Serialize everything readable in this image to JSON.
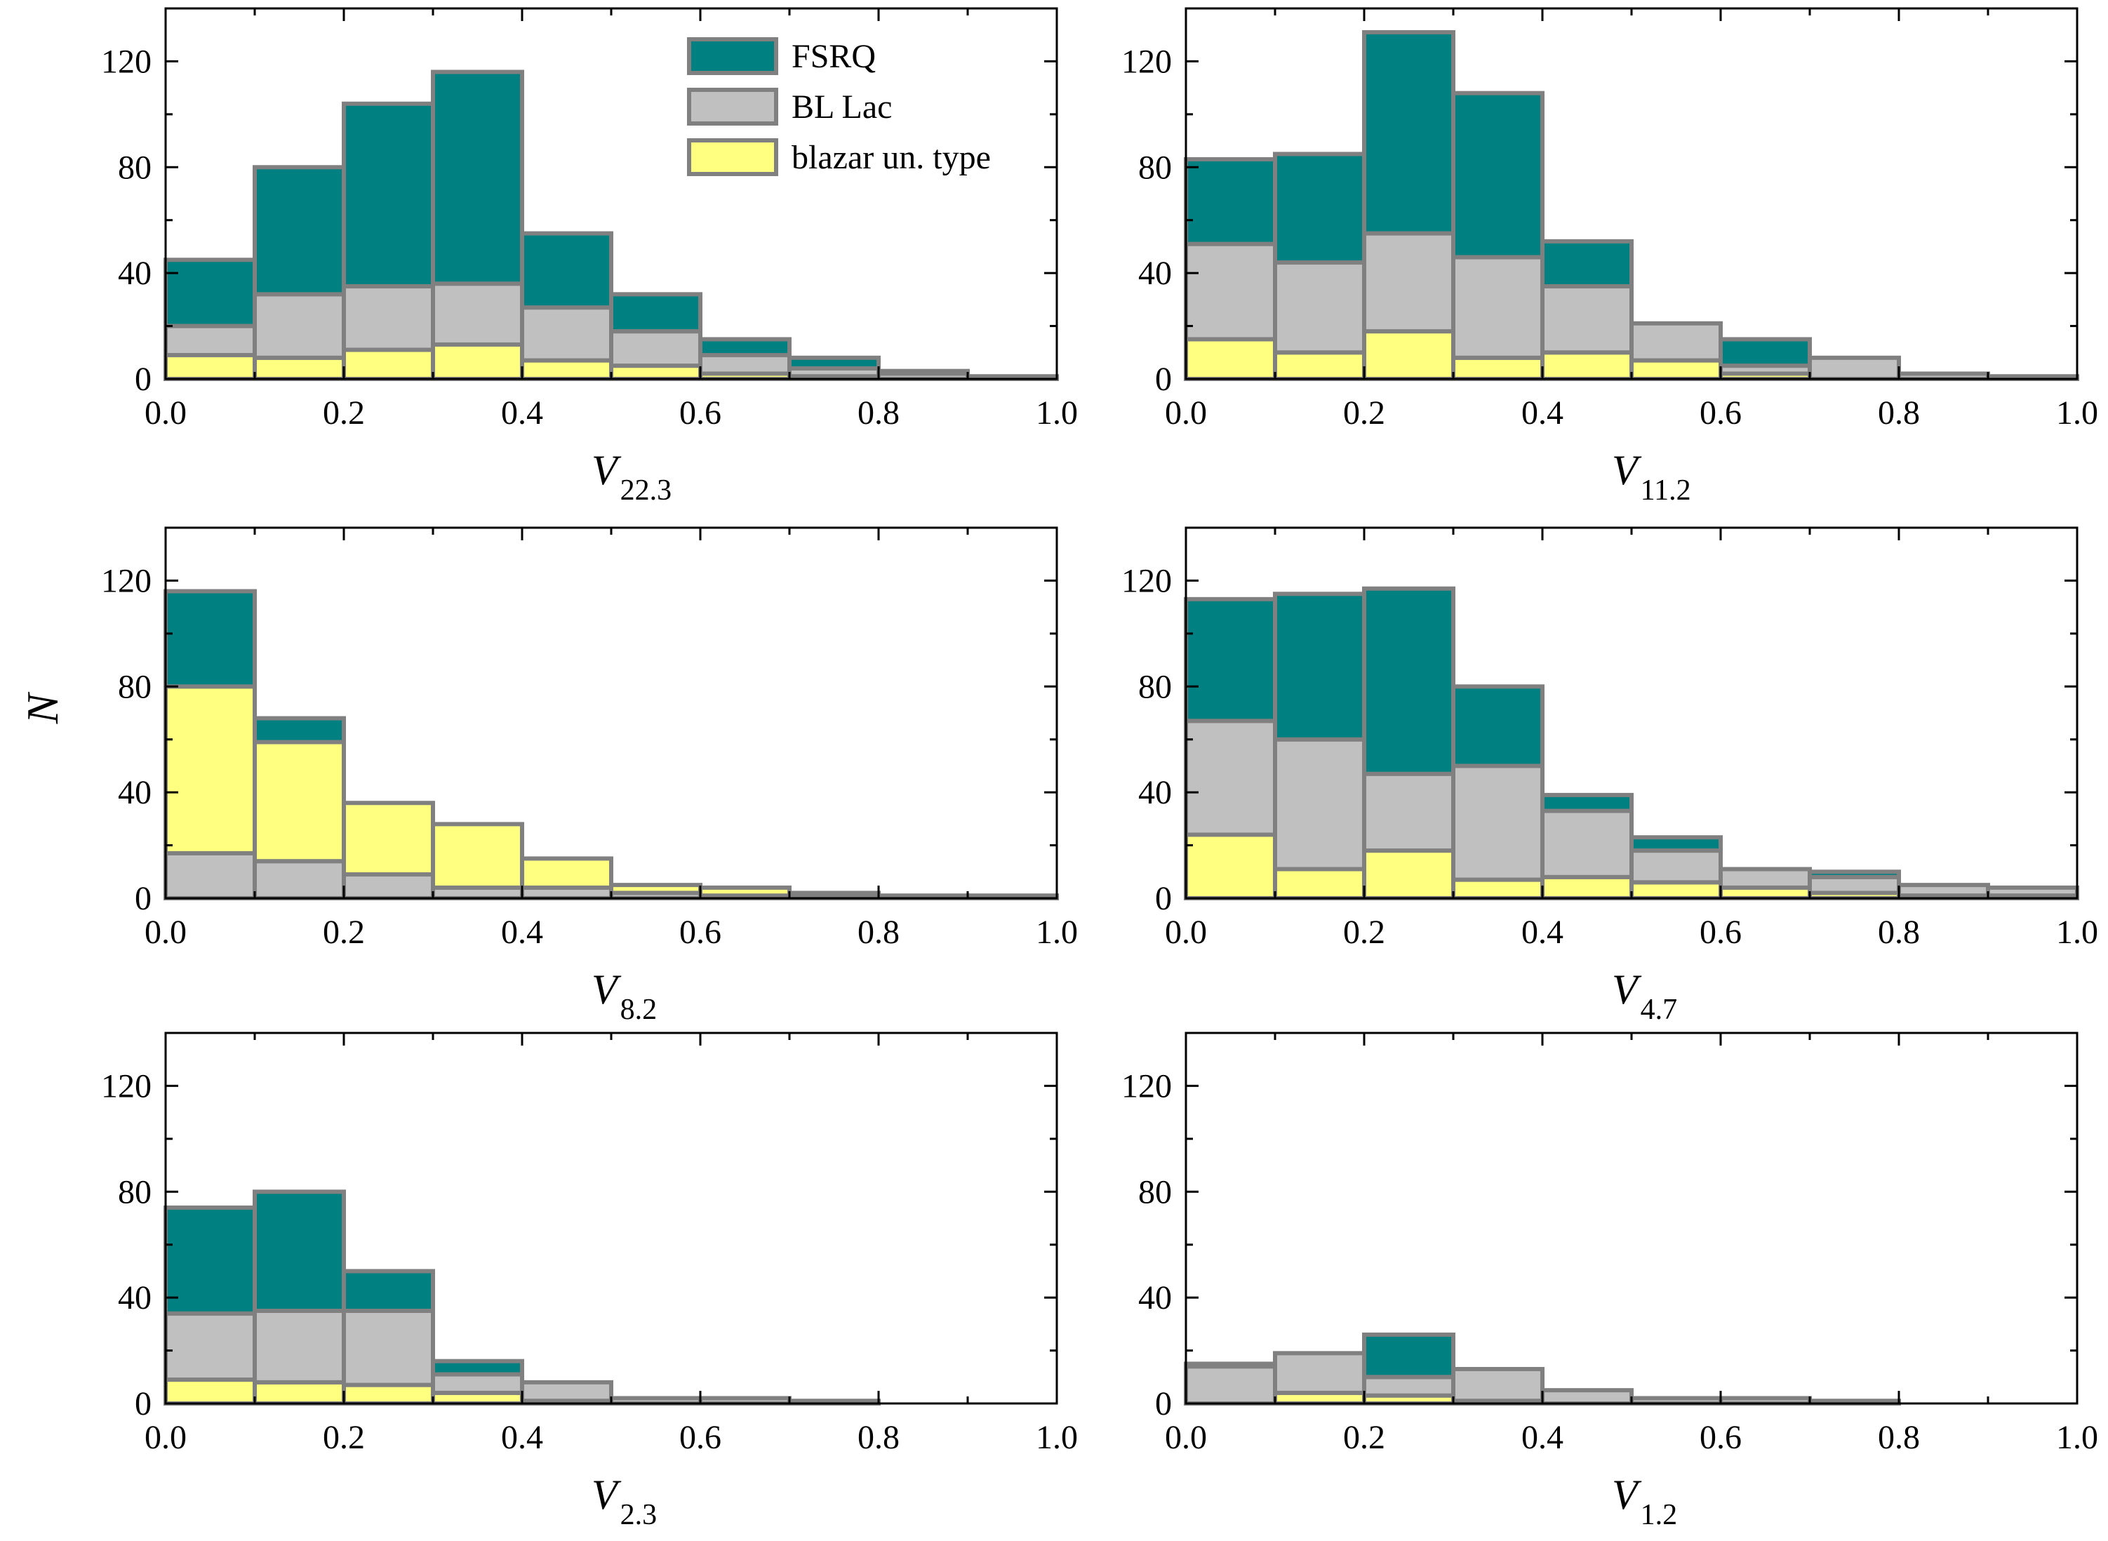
{
  "figure": {
    "shared_ylabel": "N",
    "series_colors": {
      "FSRQ": "#008080",
      "BL Lac": "#c0c0c0",
      "blazar un. type": "#ffff80"
    },
    "edge_color": "#808080"
  },
  "legend": {
    "entries": [
      {
        "name": "FSRQ",
        "color": "#008080"
      },
      {
        "name": "BL Lac",
        "color": "#c0c0c0"
      },
      {
        "name": "blazar un. type",
        "color": "#ffff80"
      }
    ]
  },
  "chart_data": [
    {
      "type": "bar",
      "stacked": true,
      "xlabel": "V",
      "xlabel_sub": "22.3",
      "bin_edges": [
        0,
        0.1,
        0.2,
        0.3,
        0.4,
        0.5,
        0.6,
        0.7,
        0.8,
        0.9,
        1.0
      ],
      "xlim": [
        0,
        1.0
      ],
      "ylim": [
        0,
        140
      ],
      "xticks": [
        "0.0",
        "0.2",
        "0.4",
        "0.6",
        "0.8",
        "1.0"
      ],
      "yticks": [
        "0",
        "40",
        "80",
        "120"
      ],
      "series": [
        {
          "name": "blazar un. type",
          "values": [
            9,
            8,
            11,
            13,
            7,
            5,
            2,
            1,
            0,
            0
          ]
        },
        {
          "name": "BL Lac",
          "values": [
            11,
            24,
            24,
            23,
            20,
            13,
            7,
            3,
            2,
            1
          ]
        },
        {
          "name": "FSRQ",
          "values": [
            25,
            48,
            69,
            80,
            28,
            14,
            6,
            4,
            1,
            0
          ]
        }
      ]
    },
    {
      "type": "bar",
      "stacked": true,
      "xlabel": "V",
      "xlabel_sub": "11.2",
      "bin_edges": [
        0,
        0.1,
        0.2,
        0.3,
        0.4,
        0.5,
        0.6,
        0.7,
        0.8,
        0.9,
        1.0
      ],
      "xlim": [
        0,
        1.0
      ],
      "ylim": [
        0,
        140
      ],
      "xticks": [
        "0.0",
        "0.2",
        "0.4",
        "0.6",
        "0.8",
        "1.0"
      ],
      "yticks": [
        "0",
        "40",
        "80",
        "120"
      ],
      "series": [
        {
          "name": "blazar un. type",
          "values": [
            15,
            10,
            18,
            8,
            10,
            7,
            2,
            0,
            0,
            0
          ]
        },
        {
          "name": "BL Lac",
          "values": [
            36,
            34,
            37,
            38,
            25,
            14,
            3,
            8,
            2,
            1
          ]
        },
        {
          "name": "FSRQ",
          "values": [
            32,
            41,
            76,
            62,
            17,
            0,
            10,
            0,
            0,
            0
          ]
        }
      ]
    },
    {
      "type": "bar",
      "stacked": true,
      "xlabel": "V",
      "xlabel_sub": "8.2",
      "bin_edges": [
        0,
        0.1,
        0.2,
        0.3,
        0.4,
        0.5,
        0.6,
        0.7,
        0.8,
        0.9,
        1.0
      ],
      "xlim": [
        0,
        1.0
      ],
      "ylim": [
        0,
        140
      ],
      "xticks": [
        "0.0",
        "0.2",
        "0.4",
        "0.6",
        "0.8",
        "1.0"
      ],
      "yticks": [
        "0",
        "40",
        "80",
        "120"
      ],
      "series": [
        {
          "name": "BL Lac",
          "values": [
            17,
            14,
            9,
            4,
            4,
            2,
            1,
            1,
            0,
            0
          ]
        },
        {
          "name": "blazar un. type",
          "values": [
            63,
            45,
            27,
            24,
            11,
            3,
            3,
            1,
            1,
            1
          ]
        },
        {
          "name": "FSRQ",
          "values": [
            36,
            9,
            0,
            0,
            0,
            0,
            0,
            0,
            0,
            0
          ]
        }
      ]
    },
    {
      "type": "bar",
      "stacked": true,
      "xlabel": "V",
      "xlabel_sub": "4.7",
      "bin_edges": [
        0,
        0.1,
        0.2,
        0.3,
        0.4,
        0.5,
        0.6,
        0.7,
        0.8,
        0.9,
        1.0
      ],
      "xlim": [
        0,
        1.0
      ],
      "ylim": [
        0,
        140
      ],
      "xticks": [
        "0.0",
        "0.2",
        "0.4",
        "0.6",
        "0.8",
        "1.0"
      ],
      "yticks": [
        "0",
        "40",
        "80",
        "120"
      ],
      "series": [
        {
          "name": "blazar un. type",
          "values": [
            24,
            11,
            18,
            7,
            8,
            6,
            4,
            2,
            1,
            1
          ]
        },
        {
          "name": "BL Lac",
          "values": [
            43,
            49,
            29,
            43,
            25,
            12,
            7,
            6,
            4,
            3
          ]
        },
        {
          "name": "FSRQ",
          "values": [
            46,
            55,
            70,
            30,
            6,
            5,
            0,
            2,
            0,
            0
          ]
        }
      ]
    },
    {
      "type": "bar",
      "stacked": true,
      "xlabel": "V",
      "xlabel_sub": "2.3",
      "bin_edges": [
        0,
        0.1,
        0.2,
        0.3,
        0.4,
        0.5,
        0.6,
        0.7,
        0.8,
        0.9,
        1.0
      ],
      "xlim": [
        0,
        1.0
      ],
      "ylim": [
        0,
        140
      ],
      "xticks": [
        "0.0",
        "0.2",
        "0.4",
        "0.6",
        "0.8",
        "1.0"
      ],
      "yticks": [
        "0",
        "40",
        "80",
        "120"
      ],
      "series": [
        {
          "name": "blazar un. type",
          "values": [
            9,
            8,
            7,
            4,
            1,
            0,
            0,
            0,
            0,
            0
          ]
        },
        {
          "name": "BL Lac",
          "values": [
            25,
            27,
            28,
            7,
            7,
            2,
            2,
            1,
            0,
            0
          ]
        },
        {
          "name": "FSRQ",
          "values": [
            40,
            45,
            15,
            5,
            0,
            0,
            0,
            0,
            0,
            0
          ]
        }
      ]
    },
    {
      "type": "bar",
      "stacked": true,
      "xlabel": "V",
      "xlabel_sub": "1.2",
      "bin_edges": [
        0,
        0.1,
        0.2,
        0.3,
        0.4,
        0.5,
        0.6,
        0.7,
        0.8,
        0.9,
        1.0
      ],
      "xlim": [
        0,
        1.0
      ],
      "ylim": [
        0,
        140
      ],
      "xticks": [
        "0.0",
        "0.2",
        "0.4",
        "0.6",
        "0.8",
        "1.0"
      ],
      "yticks": [
        "0",
        "40",
        "80",
        "120"
      ],
      "series": [
        {
          "name": "blazar un. type",
          "values": [
            0,
            4,
            3,
            1,
            0,
            0,
            0,
            0,
            0,
            0
          ]
        },
        {
          "name": "BL Lac",
          "values": [
            14,
            15,
            7,
            12,
            5,
            2,
            2,
            1,
            0,
            0
          ]
        },
        {
          "name": "FSRQ",
          "values": [
            1,
            0,
            16,
            0,
            0,
            0,
            0,
            0,
            0,
            0
          ]
        }
      ]
    }
  ]
}
